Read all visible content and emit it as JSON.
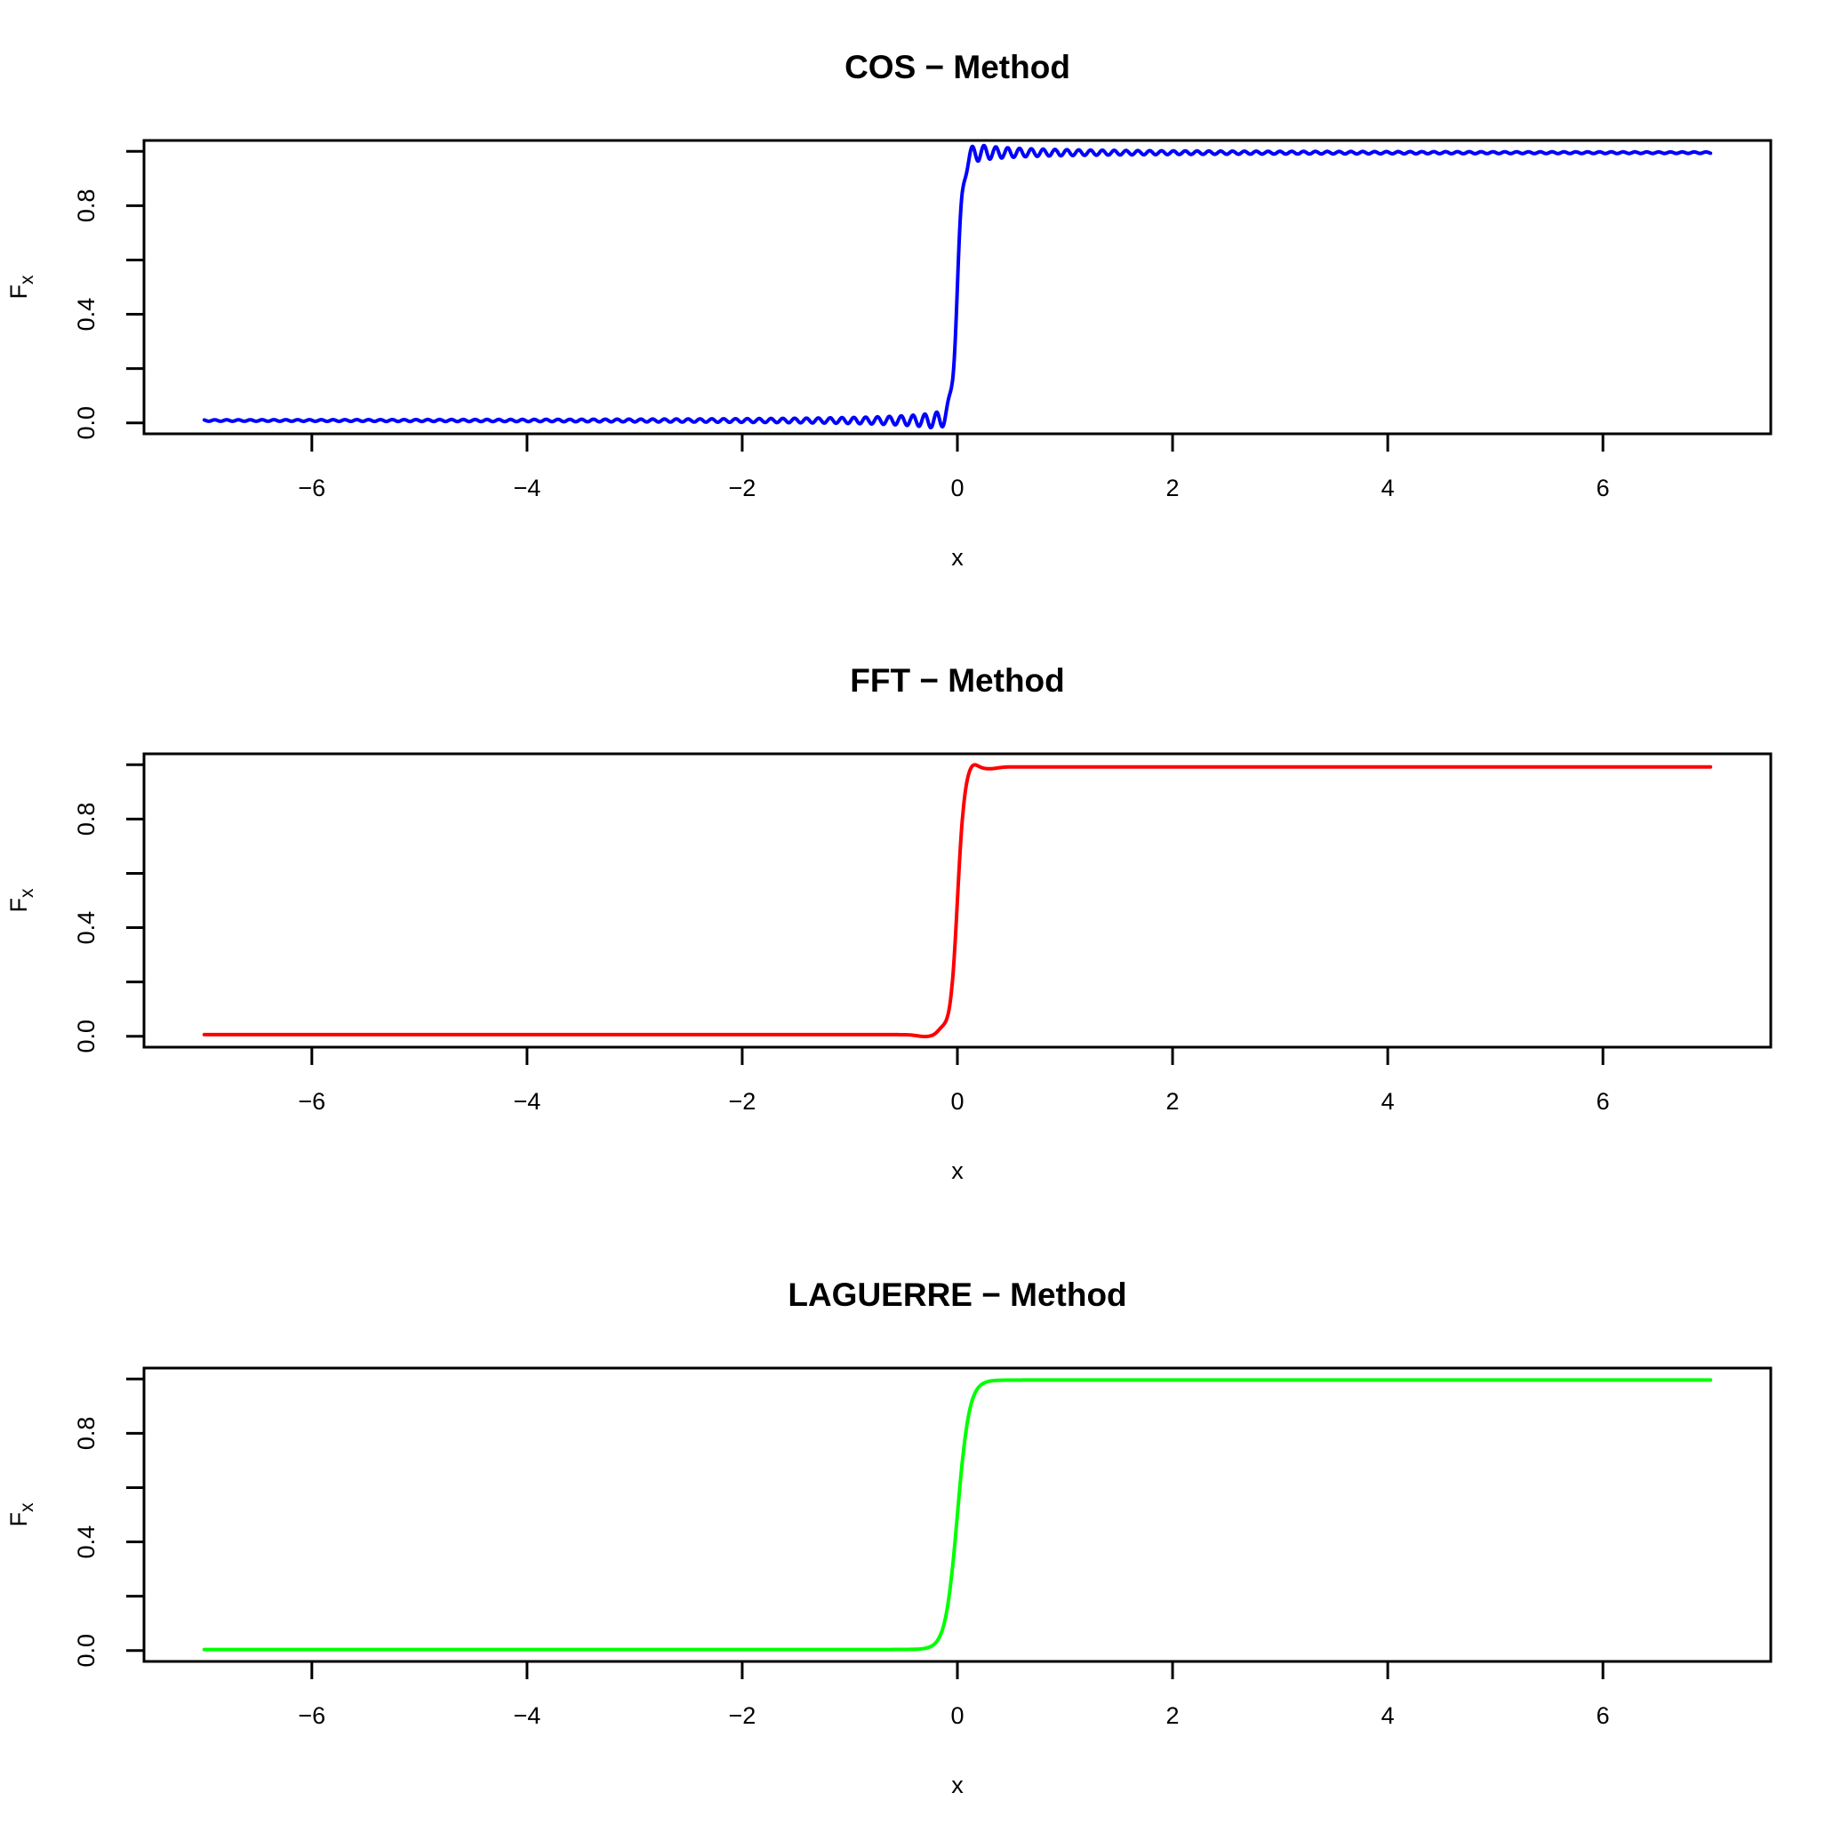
{
  "figure": {
    "background": "#ffffff",
    "description": "Three stacked R-style line plots comparing CDF recovery methods: COS, FFT and LAGUERRE. Each shows the cumulative distribution function F_x of x, a step from 0 to 1 at x = 0."
  },
  "chart_data": [
    {
      "id": "cos",
      "type": "line",
      "title": "COS − Method",
      "xlabel": "x",
      "ylabel": {
        "base": "F",
        "sub": "x"
      },
      "line_color": "#0000FF",
      "legend": "none",
      "grid": false,
      "xlim": [
        -7.56,
        7.56
      ],
      "ylim": [
        -0.04,
        1.04
      ],
      "data_xrange": [
        -7,
        7
      ],
      "x_ticks": [
        {
          "v": -6,
          "label": "−6"
        },
        {
          "v": -4,
          "label": "−4"
        },
        {
          "v": -2,
          "label": "−2"
        },
        {
          "v": 0,
          "label": "0"
        },
        {
          "v": 2,
          "label": "2"
        },
        {
          "v": 4,
          "label": "4"
        },
        {
          "v": 6,
          "label": "6"
        }
      ],
      "y_ticks": [
        {
          "v": 0.0,
          "label": "0.0"
        },
        {
          "v": 0.2,
          "label": ""
        },
        {
          "v": 0.4,
          "label": "0.4"
        },
        {
          "v": 0.6,
          "label": ""
        },
        {
          "v": 0.8,
          "label": "0.8"
        },
        {
          "v": 1.0,
          "label": ""
        }
      ],
      "key_points": [
        {
          "x": -7,
          "y": 0.0
        },
        {
          "x": 0,
          "y": 0.5
        },
        {
          "x": 7,
          "y": 1.0
        }
      ],
      "curve_character": "CDF step at x=0 with Gibbs-type oscillatory ripples along both the 0-tail and the 1-plateau, amplitude decaying away from the jump",
      "model": {
        "kind": "sigmoid_step",
        "lo": 0.009,
        "hi": 0.995,
        "scale": 0.028,
        "clamp_min": -0.03,
        "clamp_max": 1.03,
        "sample_step": 0.005,
        "components": [
          {
            "type": "decaying_sine",
            "coef": 0.012,
            "soften": 0.1,
            "power": 0.75,
            "wavelength": 0.11,
            "cap": 0.03
          }
        ]
      }
    },
    {
      "id": "fft",
      "type": "line",
      "title": "FFT − Method",
      "xlabel": "x",
      "ylabel": {
        "base": "F",
        "sub": "x"
      },
      "line_color": "#FF0000",
      "legend": "none",
      "grid": false,
      "xlim": [
        -7.56,
        7.56
      ],
      "ylim": [
        -0.04,
        1.04
      ],
      "data_xrange": [
        -7,
        7
      ],
      "x_ticks": [
        {
          "v": -6,
          "label": "−6"
        },
        {
          "v": -4,
          "label": "−4"
        },
        {
          "v": -2,
          "label": "−2"
        },
        {
          "v": 0,
          "label": "0"
        },
        {
          "v": 2,
          "label": "2"
        },
        {
          "v": 4,
          "label": "4"
        },
        {
          "v": 6,
          "label": "6"
        }
      ],
      "y_ticks": [
        {
          "v": 0.0,
          "label": "0.0"
        },
        {
          "v": 0.2,
          "label": ""
        },
        {
          "v": 0.4,
          "label": "0.4"
        },
        {
          "v": 0.6,
          "label": ""
        },
        {
          "v": 0.8,
          "label": "0.8"
        },
        {
          "v": 1.0,
          "label": ""
        }
      ],
      "key_points": [
        {
          "x": -7,
          "y": 0.0
        },
        {
          "x": 0,
          "y": 0.5
        },
        {
          "x": 7,
          "y": 1.0
        }
      ],
      "curve_character": "CDF step at x=0, mostly smooth tails with one small bump just before the jump (x≈−0.14) and one small overshoot bump just after the top corner (x≈+0.14)",
      "model": {
        "kind": "sigmoid_step",
        "lo": 0.006,
        "hi": 0.992,
        "scale": 0.033,
        "clamp_min": -0.03,
        "clamp_max": 1.03,
        "sample_step": 0.005,
        "components": [
          {
            "type": "gauss_bump",
            "amp": 0.018,
            "center": 0.14,
            "width": 0.06
          },
          {
            "type": "gauss_bump",
            "amp": -0.007,
            "center": 0.3,
            "width": 0.1
          }
        ]
      }
    },
    {
      "id": "laguerre",
      "type": "line",
      "title": "LAGUERRE − Method",
      "xlabel": "x",
      "ylabel": {
        "base": "F",
        "sub": "x"
      },
      "line_color": "#00FF00",
      "legend": "none",
      "grid": false,
      "xlim": [
        -7.56,
        7.56
      ],
      "ylim": [
        -0.04,
        1.04
      ],
      "data_xrange": [
        -7,
        7
      ],
      "x_ticks": [
        {
          "v": -6,
          "label": "−6"
        },
        {
          "v": -4,
          "label": "−4"
        },
        {
          "v": -2,
          "label": "−2"
        },
        {
          "v": 0,
          "label": "0"
        },
        {
          "v": 2,
          "label": "2"
        },
        {
          "v": 4,
          "label": "4"
        },
        {
          "v": 6,
          "label": "6"
        }
      ],
      "y_ticks": [
        {
          "v": 0.0,
          "label": "0.0"
        },
        {
          "v": 0.2,
          "label": ""
        },
        {
          "v": 0.4,
          "label": "0.4"
        },
        {
          "v": 0.6,
          "label": ""
        },
        {
          "v": 0.8,
          "label": "0.8"
        },
        {
          "v": 1.0,
          "label": ""
        }
      ],
      "key_points": [
        {
          "x": -7,
          "y": 0.0
        },
        {
          "x": 0,
          "y": 0.5
        },
        {
          "x": 7,
          "y": 1.0
        }
      ],
      "curve_character": "Completely smooth sigmoid CDF step at x=0 with rounded corners, no oscillation",
      "model": {
        "kind": "sigmoid_step",
        "lo": 0.004,
        "hi": 0.996,
        "scale": 0.055,
        "clamp_min": -0.03,
        "clamp_max": 1.03,
        "sample_step": 0.005,
        "components": []
      }
    }
  ]
}
